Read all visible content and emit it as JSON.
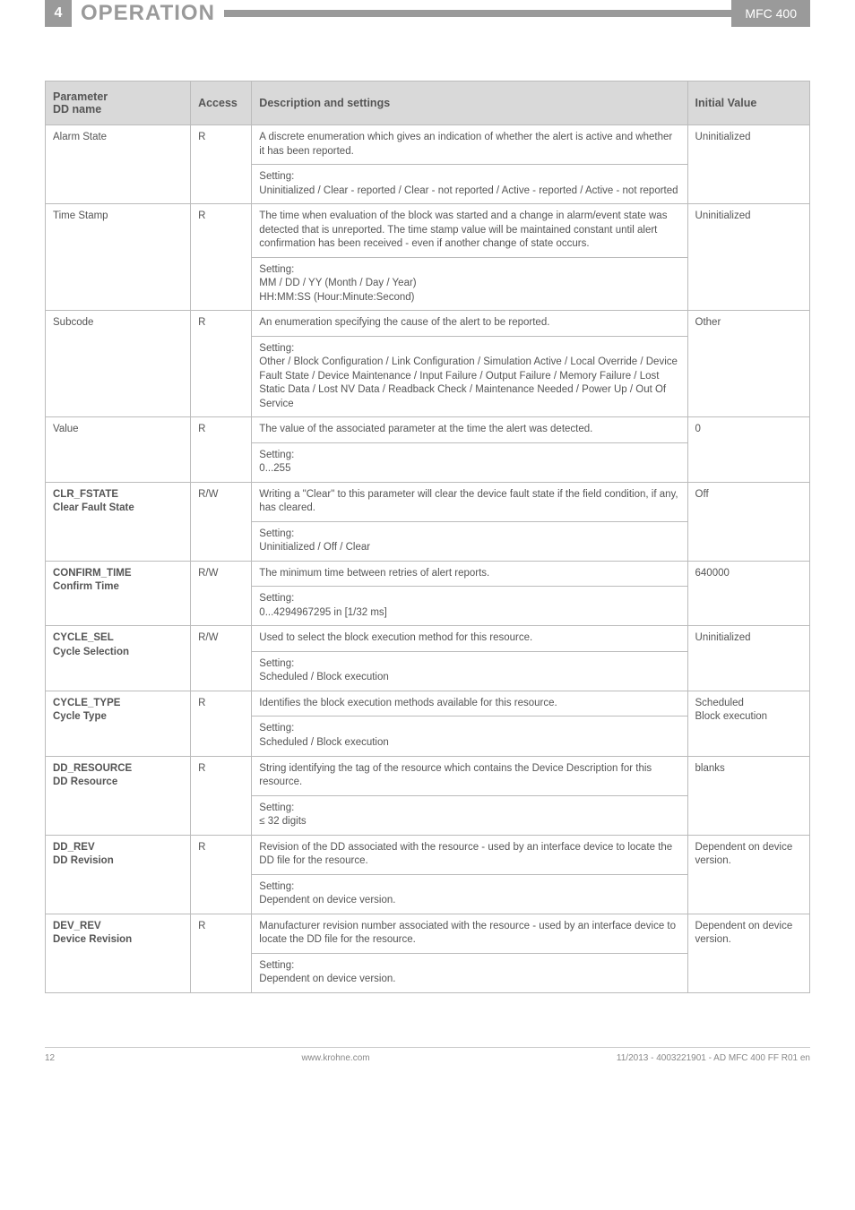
{
  "header": {
    "section_number": "4",
    "section_title": "OPERATION",
    "product": "MFC 400"
  },
  "table": {
    "headers": {
      "parameter": "Parameter\nDD name",
      "access": "Access",
      "description": "Description and settings",
      "initial": "Initial Value"
    },
    "rows": [
      {
        "param_main": "",
        "param_sub": "Alarm State",
        "access": "R",
        "desc1": "A discrete enumeration which gives an indication of whether the alert is active and whether it has been reported.",
        "desc2": "Setting:\nUninitialized / Clear - reported / Clear - not reported / Active - reported / Active - not reported",
        "initial": "Uninitialized"
      },
      {
        "param_main": "",
        "param_sub": "Time Stamp",
        "access": "R",
        "desc1": "The time when evaluation of the block was started and a change in alarm/event state was detected that is unreported. The time stamp value will be maintained constant until alert confirmation has been received - even if another change of state occurs.",
        "desc2": "Setting:\nMM / DD / YY (Month / Day / Year)\nHH:MM:SS (Hour:Minute:Second)",
        "initial": "Uninitialized"
      },
      {
        "param_main": "",
        "param_sub": "Subcode",
        "access": "R",
        "desc1": "An enumeration specifying the cause of the alert to be reported.",
        "desc2": "Setting:\nOther / Block Configuration / Link Configuration / Simulation Active / Local Override / Device Fault State / Device Maintenance / Input Failure / Output Failure / Memory Failure / Lost Static Data / Lost NV Data / Readback Check / Maintenance Needed / Power Up / Out Of Service",
        "initial": "Other"
      },
      {
        "param_main": "",
        "param_sub": "Value",
        "access": "R",
        "desc1": "The value of the associated parameter at the time the alert was detected.",
        "desc2": "Setting:\n0...255",
        "initial": "0"
      },
      {
        "param_main": "CLR_FSTATE",
        "param_sub": "Clear Fault State",
        "access": "R/W",
        "desc1": "Writing a \"Clear\" to this parameter will clear the device fault state if the field condition, if any, has cleared.",
        "desc2": "Setting:\nUninitialized / Off / Clear",
        "initial": "Off"
      },
      {
        "param_main": "CONFIRM_TIME",
        "param_sub": "Confirm Time",
        "access": "R/W",
        "desc1": "The minimum time between retries of alert reports.",
        "desc2": "Setting:\n0...4294967295 in [1/32 ms]",
        "initial": "640000"
      },
      {
        "param_main": "CYCLE_SEL",
        "param_sub": "Cycle Selection",
        "access": "R/W",
        "desc1": "Used to select the block execution method for this resource.",
        "desc2": "Setting:\nScheduled / Block execution",
        "initial": "Uninitialized"
      },
      {
        "param_main": "CYCLE_TYPE",
        "param_sub": "Cycle Type",
        "access": "R",
        "desc1": "Identifies the block execution methods available for this resource.",
        "desc2": "Setting:\nScheduled / Block execution",
        "initial": "Scheduled\nBlock execution"
      },
      {
        "param_main": "DD_RESOURCE",
        "param_sub": "DD Resource",
        "access": "R",
        "desc1": "String identifying the tag of the resource which contains the Device Description for this resource.",
        "desc2": "Setting:\n≤ 32 digits",
        "initial": "blanks"
      },
      {
        "param_main": "DD_REV",
        "param_sub": "DD Revision",
        "access": "R",
        "desc1": "Revision of the DD associated with the resource - used by an interface device to locate the DD file for the resource.",
        "desc2": "Setting:\nDependent on device version.",
        "initial": "Dependent on device version."
      },
      {
        "param_main": "DEV_REV",
        "param_sub": "Device Revision",
        "access": "R",
        "desc1": "Manufacturer revision number associated with the resource - used by an interface device to locate the DD file for the resource.",
        "desc2": "Setting:\nDependent on device version.",
        "initial": "Dependent on device version."
      }
    ]
  },
  "footer": {
    "page": "12",
    "url": "www.krohne.com",
    "doc": "11/2013 - 4003221901 - AD MFC 400 FF R01 en"
  }
}
